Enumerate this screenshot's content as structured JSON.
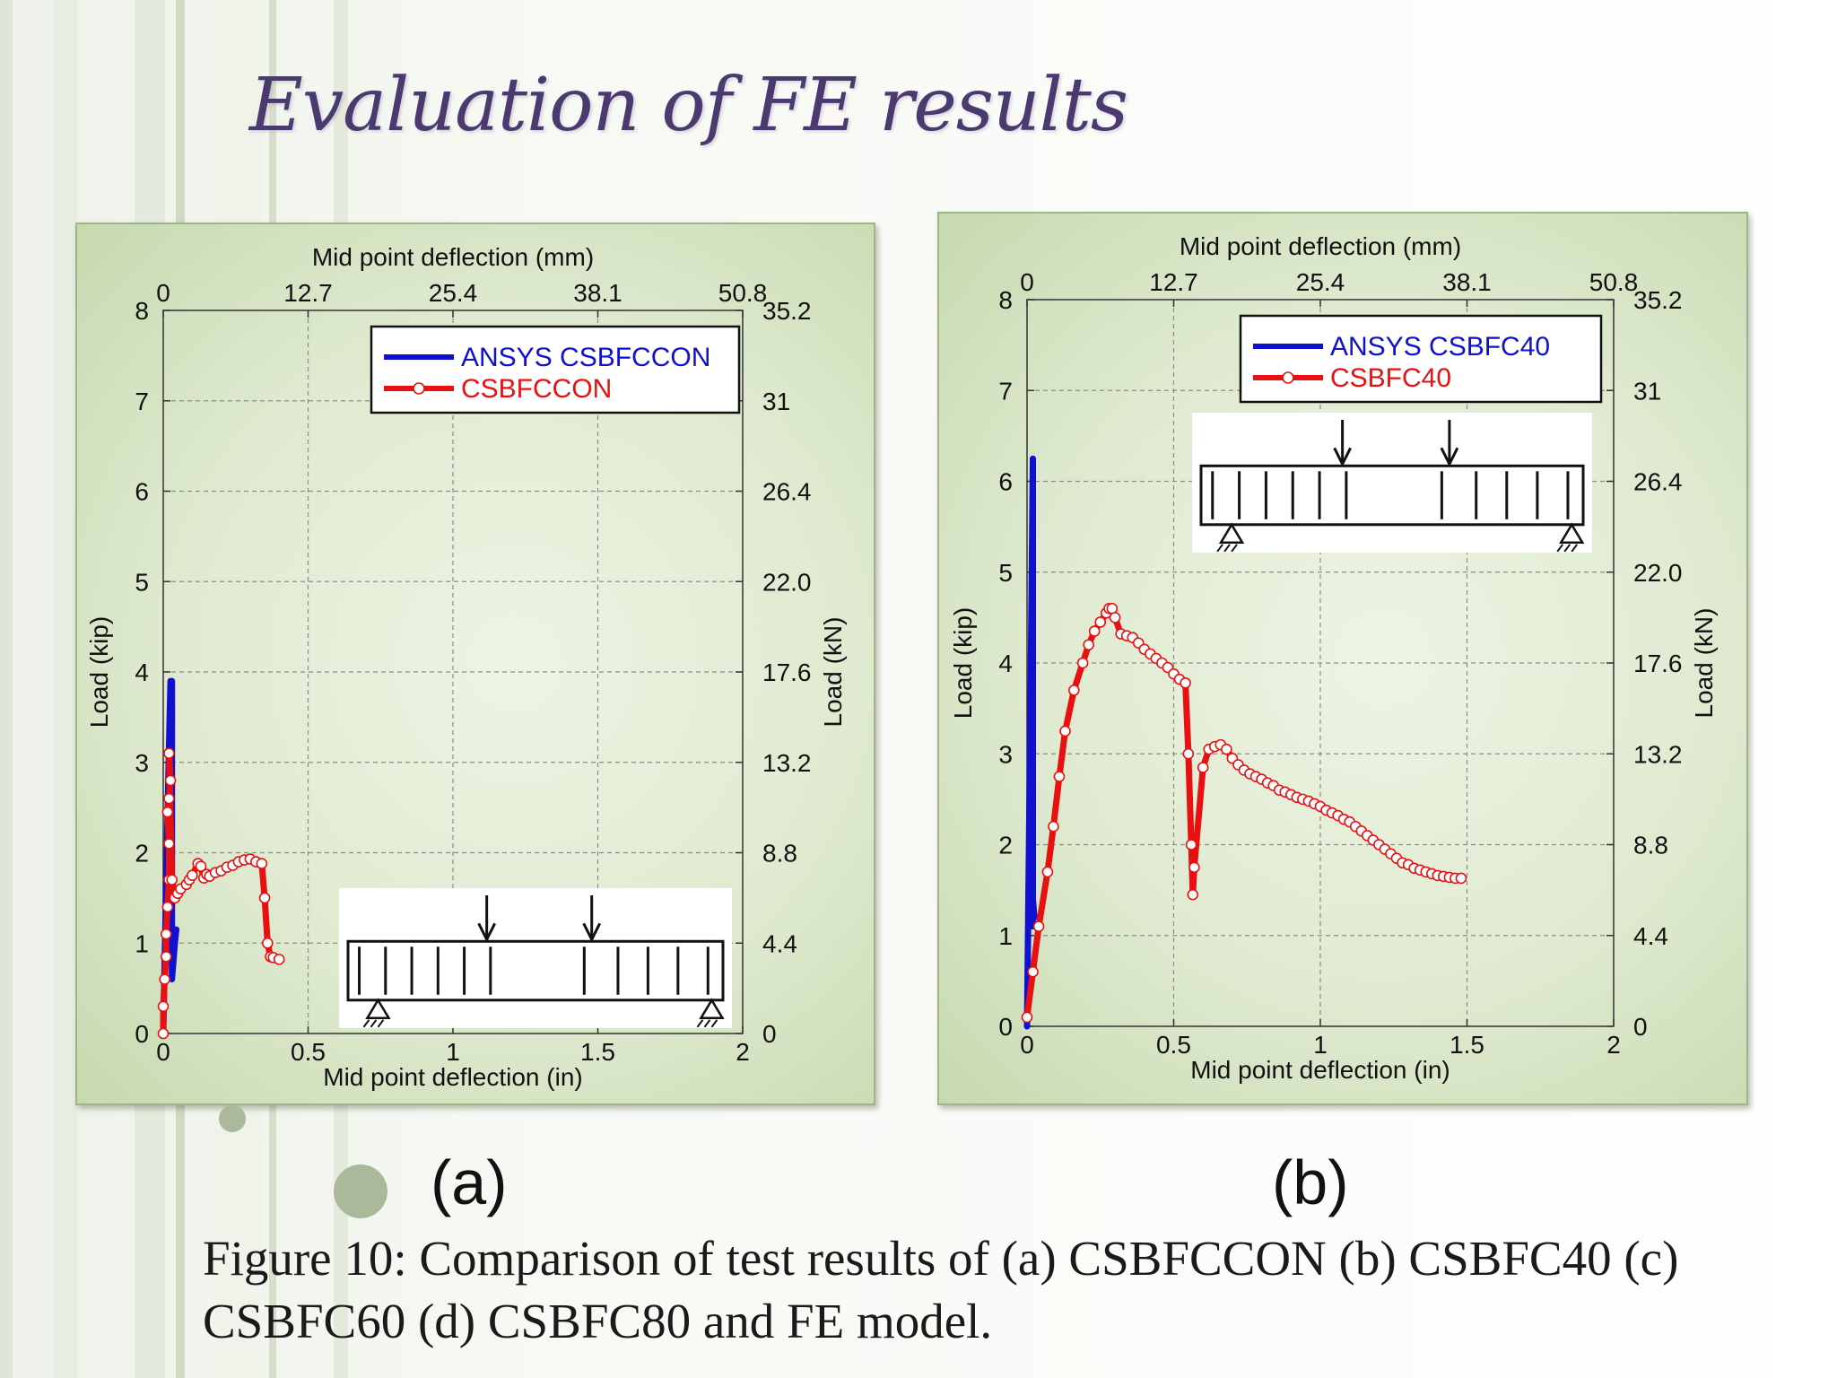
{
  "slide": {
    "title": "Evaluation of FE results",
    "caption": "Figure 10: Comparison of test results of (a) CSBFCCON (b) CSBFC40 (c) CSBFC60 (d) CSBFC80 and FE model.",
    "sub_labels": [
      "(a)",
      "(b)"
    ]
  },
  "chart_data": [
    {
      "type": "line",
      "panel_label": "(a)",
      "xlabel": "Mid point deflection (in)",
      "x2label": "Mid point deflection (mm)",
      "ylabel": "Load (kip)",
      "y2label": "Load (kN)",
      "xlim": [
        0,
        2
      ],
      "ylim": [
        0,
        8
      ],
      "x_ticks": [
        "0",
        "0.5",
        "1",
        "1.5",
        "2"
      ],
      "y_ticks": [
        "0",
        "1",
        "2",
        "3",
        "4",
        "5",
        "6",
        "7",
        "8"
      ],
      "x2_ticks": [
        "0",
        "12.7",
        "25.4",
        "38.1",
        "50.8"
      ],
      "y2_ticks": [
        "0",
        "4.4",
        "8.8",
        "13.2",
        "17.6",
        "22.0",
        "26.4",
        "31",
        "35.2"
      ],
      "grid": true,
      "legend_position": "top-right",
      "series": [
        {
          "name": "ANSYS CSBFCCON",
          "color": "#1010d0",
          "marker": "none",
          "x": [
            0,
            0.005,
            0.01,
            0.015,
            0.02,
            0.025,
            0.03,
            0.03,
            0.035,
            0.04,
            0.045
          ],
          "y": [
            0,
            0.8,
            1.6,
            2.4,
            3.2,
            3.9,
            3.9,
            0.6,
            0.8,
            1.0,
            1.15
          ]
        },
        {
          "name": "CSBFCCON",
          "color": "#e81010",
          "marker": "circle",
          "x": [
            0,
            0,
            0.005,
            0.01,
            0.01,
            0.015,
            0.02,
            0.02,
            0.015,
            0.02,
            0.025,
            0.02,
            0.03,
            0.04,
            0.05,
            0.06,
            0.08,
            0.09,
            0.1,
            0.12,
            0.13,
            0.14,
            0.15,
            0.16,
            0.18,
            0.2,
            0.22,
            0.24,
            0.26,
            0.28,
            0.3,
            0.32,
            0.34,
            0.35,
            0.36,
            0.37,
            0.38,
            0.4
          ],
          "y": [
            0,
            0.3,
            0.6,
            0.85,
            1.1,
            1.4,
            1.7,
            2.1,
            2.45,
            2.6,
            2.8,
            3.1,
            1.7,
            1.5,
            1.55,
            1.6,
            1.65,
            1.7,
            1.75,
            1.88,
            1.85,
            1.72,
            1.76,
            1.74,
            1.78,
            1.8,
            1.84,
            1.86,
            1.9,
            1.92,
            1.93,
            1.9,
            1.88,
            1.5,
            1.0,
            0.85,
            0.84,
            0.82
          ]
        }
      ]
    },
    {
      "type": "line",
      "panel_label": "(b)",
      "xlabel": "Mid point deflection (in)",
      "x2label": "Mid point deflection (mm)",
      "ylabel": "Load (kip)",
      "y2label": "Load (kN)",
      "xlim": [
        0,
        2
      ],
      "ylim": [
        0,
        8
      ],
      "x_ticks": [
        "0",
        "0.5",
        "1",
        "1.5",
        "2"
      ],
      "y_ticks": [
        "0",
        "1",
        "2",
        "3",
        "4",
        "5",
        "6",
        "7",
        "8"
      ],
      "x2_ticks": [
        "0",
        "12.7",
        "25.4",
        "38.1",
        "50.8"
      ],
      "y2_ticks": [
        "0",
        "4.4",
        "8.8",
        "13.2",
        "17.6",
        "22.0",
        "26.4",
        "31",
        "35.2"
      ],
      "grid": true,
      "legend_position": "top-right",
      "series": [
        {
          "name": "ANSYS CSBFC40",
          "color": "#1010d0",
          "marker": "none",
          "x": [
            0,
            0.005,
            0.01,
            0.015,
            0.02,
            0.02,
            0.02,
            0.025
          ],
          "y": [
            0,
            1.5,
            3.0,
            4.6,
            6.25,
            1.1,
            1.4,
            1.2
          ]
        },
        {
          "name": "CSBFC40",
          "color": "#e81010",
          "marker": "circle",
          "x": [
            0,
            0.02,
            0.04,
            0.07,
            0.09,
            0.11,
            0.13,
            0.16,
            0.19,
            0.21,
            0.23,
            0.25,
            0.27,
            0.28,
            0.29,
            0.3,
            0.32,
            0.34,
            0.36,
            0.38,
            0.4,
            0.42,
            0.44,
            0.46,
            0.48,
            0.5,
            0.52,
            0.54,
            0.55,
            0.56,
            0.565,
            0.57,
            0.6,
            0.62,
            0.64,
            0.66,
            0.68,
            0.7,
            0.72,
            0.74,
            0.76,
            0.78,
            0.8,
            0.82,
            0.84,
            0.86,
            0.88,
            0.9,
            0.92,
            0.94,
            0.96,
            0.98,
            1.0,
            1.02,
            1.04,
            1.06,
            1.08,
            1.1,
            1.12,
            1.14,
            1.16,
            1.18,
            1.2,
            1.22,
            1.24,
            1.26,
            1.28,
            1.3,
            1.32,
            1.34,
            1.36,
            1.38,
            1.4,
            1.42,
            1.44,
            1.46,
            1.48
          ],
          "y": [
            0.1,
            0.6,
            1.1,
            1.7,
            2.2,
            2.75,
            3.25,
            3.7,
            4.0,
            4.2,
            4.35,
            4.45,
            4.55,
            4.6,
            4.6,
            4.5,
            4.32,
            4.3,
            4.28,
            4.22,
            4.15,
            4.1,
            4.05,
            4.0,
            3.95,
            3.88,
            3.82,
            3.78,
            3.0,
            2.0,
            1.45,
            1.75,
            2.85,
            3.05,
            3.08,
            3.1,
            3.05,
            2.95,
            2.88,
            2.82,
            2.78,
            2.75,
            2.72,
            2.68,
            2.65,
            2.6,
            2.58,
            2.55,
            2.52,
            2.5,
            2.48,
            2.45,
            2.42,
            2.38,
            2.35,
            2.32,
            2.28,
            2.25,
            2.2,
            2.15,
            2.1,
            2.05,
            2.0,
            1.95,
            1.9,
            1.85,
            1.8,
            1.78,
            1.74,
            1.72,
            1.7,
            1.68,
            1.66,
            1.65,
            1.64,
            1.63,
            1.63
          ]
        }
      ]
    }
  ]
}
